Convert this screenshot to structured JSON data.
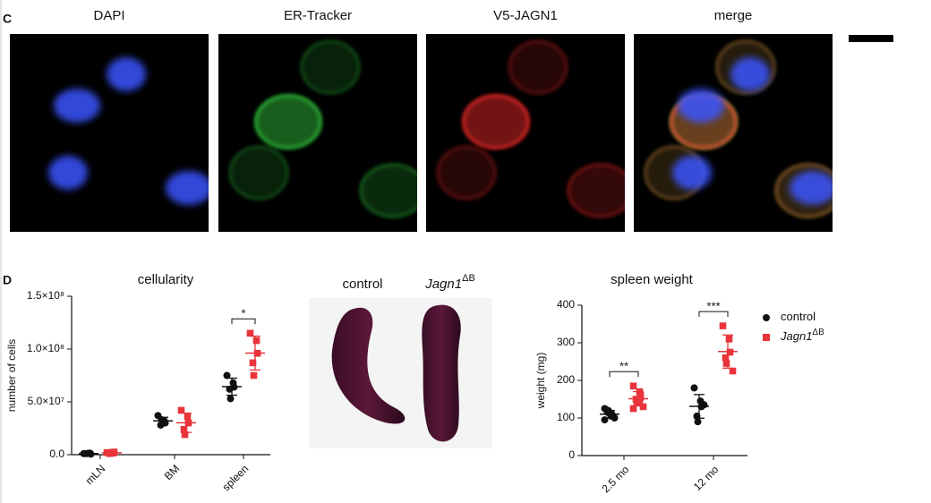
{
  "panel_labels": [
    "C",
    "D"
  ],
  "microscopy": {
    "labels": [
      "DAPI",
      "ER-Tracker",
      "V5-JAGN1",
      "merge"
    ],
    "colors": [
      "#3a4fcf",
      "#2ea043",
      "#e02a30",
      "#111111"
    ]
  },
  "photo": {
    "control": "control",
    "mutant": {
      "name": "Jagn1",
      "superscript": "ΔB"
    }
  },
  "chart_data": [
    {
      "type": "dotplot",
      "title": "cellularity",
      "ylabel": "number of cells",
      "categories": [
        "mLN",
        "BM",
        "spleen"
      ],
      "ylim": [
        0,
        150000000
      ],
      "yticks": [
        {
          "value": 0,
          "label": "0.0"
        },
        {
          "value": 50000000,
          "label": "5.0×10⁷"
        },
        {
          "value": 100000000,
          "label": "1.0×10⁸"
        },
        {
          "value": 150000000,
          "label": "1.5×10⁸"
        }
      ],
      "significance": [
        null,
        null,
        "*"
      ],
      "series": [
        {
          "name": "control",
          "color": "#111111",
          "values": [
            [
              1000000,
              1500000,
              500000,
              1000000,
              1200000
            ],
            [
              37000000,
              32000000,
              30000000,
              28000000,
              33000000
            ],
            [
              75000000,
              68000000,
              64000000,
              62000000,
              53000000
            ]
          ]
        },
        {
          "name": "Jagn1",
          "name_superscript": "ΔB",
          "color": "#e8343a",
          "values": [
            [
              2000000,
              1500000,
              2500000,
              1000000,
              2000000
            ],
            [
              42000000,
              36000000,
              30000000,
              24000000,
              19000000
            ],
            [
              115000000,
              108000000,
              96000000,
              87000000,
              75000000
            ]
          ]
        }
      ]
    },
    {
      "type": "dotplot",
      "title": "spleen weight",
      "ylabel": "weight (mg)",
      "categories": [
        "2.5 mo",
        "12 mo"
      ],
      "ylim": [
        0,
        400
      ],
      "yticks": [
        0,
        100,
        200,
        300,
        400
      ],
      "significance": [
        "**",
        "***"
      ],
      "legend": "right",
      "series": [
        {
          "name": "control",
          "color": "#111111",
          "values": [
            [
              95,
              105,
              110,
              115,
              120,
              100,
              125,
              110
            ],
            [
              180,
              145,
              130,
              105,
              90,
              135
            ]
          ]
        },
        {
          "name": "Jagn1",
          "name_superscript": "ΔB",
          "color": "#e8343a",
          "values": [
            [
              185,
              170,
              160,
              150,
              140,
              130,
              125,
              145,
              155
            ],
            [
              345,
              310,
              275,
              260,
              245,
              225
            ]
          ]
        }
      ]
    }
  ]
}
